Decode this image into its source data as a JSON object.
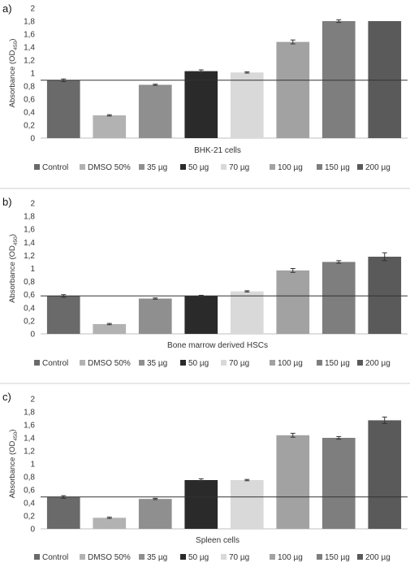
{
  "legend": [
    "Control",
    "DMSO 50%",
    "35 µg",
    "50 µg",
    "70 µg",
    "100 µg",
    "150 µg",
    "200 µg"
  ],
  "series_colors": [
    "#6a6a6a",
    "#b2b2b2",
    "#8f8f8f",
    "#2a2a2a",
    "#d9d9d9",
    "#a2a2a2",
    "#7e7e7e",
    "#5a5a5a"
  ],
  "y_ticks": [
    "0",
    "0,2",
    "0,4",
    "0,6",
    "0,8",
    "1",
    "1,2",
    "1,4",
    "1,6",
    "1,8",
    "2"
  ],
  "chart_data": [
    {
      "type": "bar",
      "panel": "a)",
      "xlabel": "BHK-21 cells",
      "ylabel_main": "Absorbance (OD",
      "ylabel_sub": "450",
      "ylabel_end": ")",
      "ylim": [
        0,
        2
      ],
      "categories": [
        "Control",
        "DMSO 50%",
        "35 µg",
        "50 µg",
        "70 µg",
        "100 µg",
        "150 µg",
        "200 µg"
      ],
      "values": [
        0.89,
        0.35,
        0.82,
        1.03,
        1.01,
        1.48,
        1.8,
        1.8
      ],
      "errors": [
        0.02,
        0.01,
        0.01,
        0.02,
        0.01,
        0.03,
        0.02,
        0.0
      ],
      "reference_line": 0.89,
      "grid": false,
      "legend_position": "bottom"
    },
    {
      "type": "bar",
      "panel": "b)",
      "xlabel": "Bone marrow derived HSCs",
      "ylabel_main": "Absorbance (OD",
      "ylabel_sub": "450",
      "ylabel_end": ")",
      "ylim": [
        0,
        2
      ],
      "categories": [
        "Control",
        "DMSO 50%",
        "35 µg",
        "50 µg",
        "70 µg",
        "100 µg",
        "150 µg",
        "200 µg"
      ],
      "values": [
        0.58,
        0.15,
        0.54,
        0.58,
        0.65,
        0.97,
        1.1,
        1.18
      ],
      "errors": [
        0.02,
        0.01,
        0.01,
        0.01,
        0.01,
        0.03,
        0.02,
        0.06
      ],
      "reference_line": 0.58,
      "grid": false,
      "legend_position": "bottom"
    },
    {
      "type": "bar",
      "panel": "c)",
      "xlabel": "Spleen cells",
      "ylabel_main": "Absorbance (OD",
      "ylabel_sub": "450",
      "ylabel_end": ")",
      "ylim": [
        0,
        2
      ],
      "categories": [
        "Control",
        "DMSO 50%",
        "35 µg",
        "50 µg",
        "70 µg",
        "100 µg",
        "150 µg",
        "200 µg"
      ],
      "values": [
        0.49,
        0.17,
        0.46,
        0.75,
        0.75,
        1.44,
        1.4,
        1.67
      ],
      "errors": [
        0.02,
        0.01,
        0.01,
        0.02,
        0.01,
        0.03,
        0.02,
        0.05
      ],
      "reference_line": 0.49,
      "grid": false,
      "legend_position": "bottom"
    }
  ]
}
